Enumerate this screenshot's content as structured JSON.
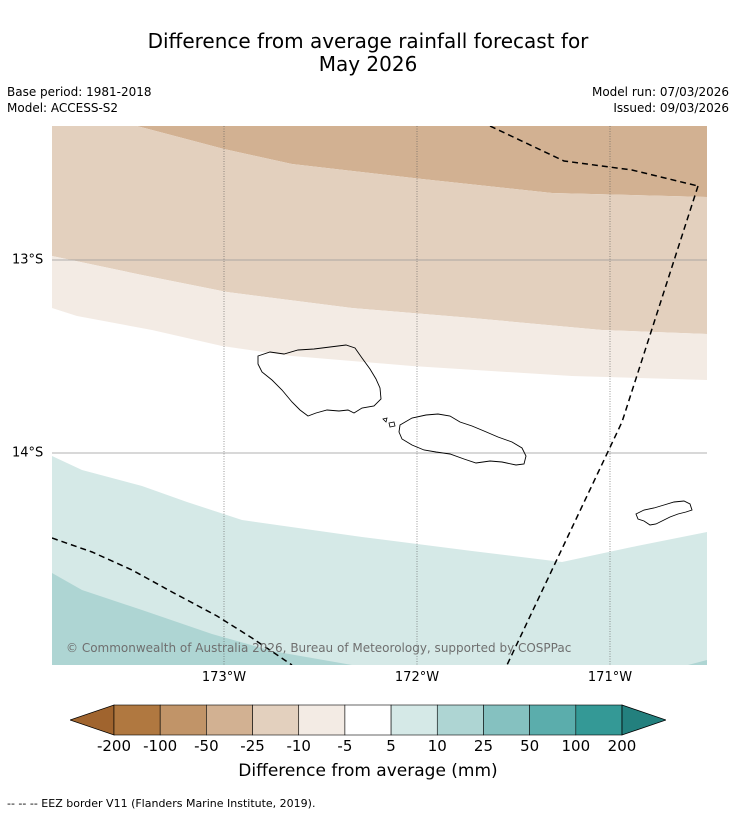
{
  "title_line1": "Difference from average rainfall forecast for",
  "title_line2": "May 2026",
  "base_period": "Base period: 1981-2018",
  "model": "Model: ACCESS-S2",
  "model_run": "Model run: 07/03/2026",
  "issued": "Issued: 09/03/2026",
  "copyright": "© Commonwealth of Australia 2026, Bureau of Meteorology, supported by COSPPac",
  "lon_labels": [
    "173°W",
    "172°W",
    "171°W"
  ],
  "lat_labels": [
    "13°S",
    "14°S"
  ],
  "colorbar": {
    "ticks": [
      "-200",
      "-100",
      "-50",
      "-25",
      "-10",
      "-5",
      "5",
      "10",
      "25",
      "50",
      "100",
      "200"
    ],
    "colors": [
      "#a0642e",
      "#b07840",
      "#c19468",
      "#d2b192",
      "#e3d0be",
      "#f3ebe4",
      "#ffffff",
      "#d5e9e7",
      "#aed5d3",
      "#85c1c0",
      "#5badac",
      "#349996",
      "#23807e"
    ],
    "label": "Difference from average (mm)"
  },
  "footnote": "--  --  -- EEZ border V11 (Flanders Marine Institute, 2019).",
  "colors": {
    "band_minus50": "#d2b192",
    "band_minus25": "#e3d0be",
    "band_minus10": "#f3ebe4",
    "band_plus5": "#d5e9e7",
    "band_plus10": "#aed5d3"
  }
}
